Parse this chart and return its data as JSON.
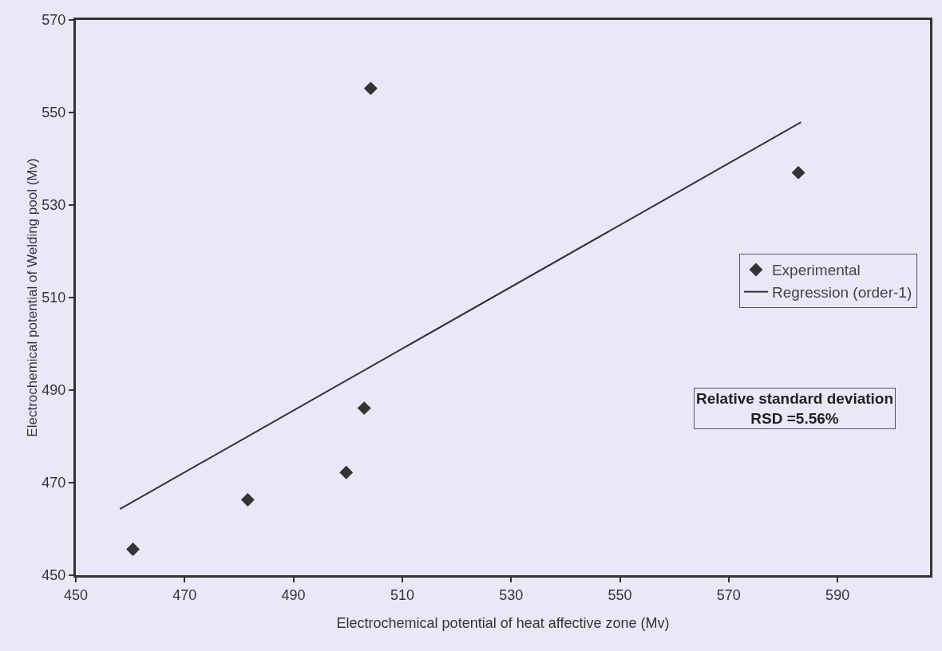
{
  "chart_data": {
    "type": "scatter",
    "xlabel": "Electrochemical potential of heat affective zone (Mv)",
    "ylabel": "Electrochemical potential of Welding pool (Mv)",
    "x": [
      460.5,
      481.6,
      499.7,
      503,
      504.2,
      582.8
    ],
    "series": [
      {
        "name": "Experimental",
        "marker": "diamond",
        "color": "#333333",
        "values": [
          455.6,
          466.3,
          472.2,
          486.1,
          555.2,
          537
        ]
      },
      {
        "name": "Regression (order-1)",
        "type": "line",
        "marker": "none",
        "color": "#333333",
        "x": [
          458.1,
          583.3
        ],
        "values": [
          464.3,
          547.9
        ]
      }
    ],
    "xlim": [
      450,
      607
    ],
    "xticks": [
      450,
      470,
      490,
      510,
      530,
      550,
      570,
      590
    ],
    "ylim": [
      450,
      570
    ],
    "yticks": [
      450,
      470,
      490,
      510,
      530,
      550,
      570
    ],
    "grid": false,
    "legend": "right",
    "annotations": [
      "Relative standard deviation\nRSD =5.56%"
    ]
  }
}
